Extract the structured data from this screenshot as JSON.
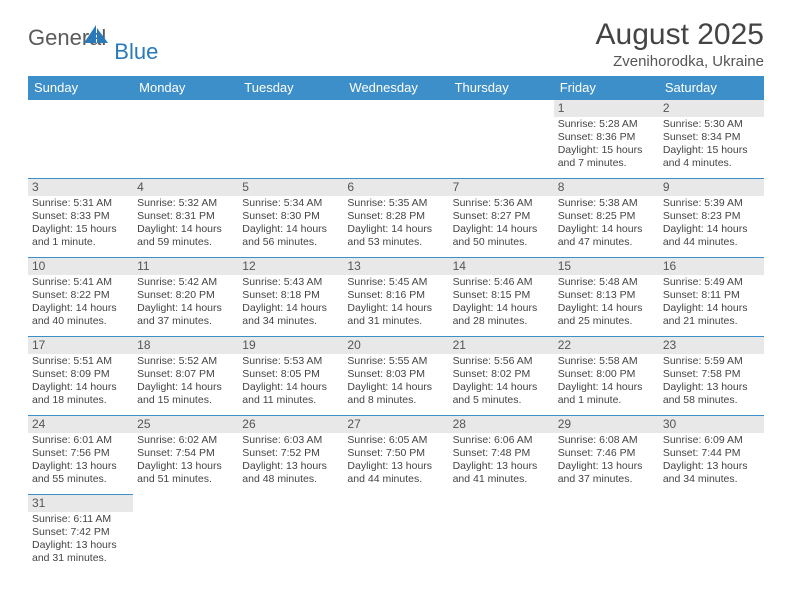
{
  "brand": {
    "part1": "General",
    "part2": "Blue"
  },
  "title": "August 2025",
  "location": "Zvenihorodka, Ukraine",
  "colors": {
    "header_bg": "#3d8fc9",
    "header_fg": "#ffffff",
    "daynum_bg": "#e8e8e8",
    "border": "#3d8fc9",
    "text": "#444444"
  },
  "weekdays": [
    "Sunday",
    "Monday",
    "Tuesday",
    "Wednesday",
    "Thursday",
    "Friday",
    "Saturday"
  ],
  "weeks": [
    [
      null,
      null,
      null,
      null,
      null,
      {
        "n": "1",
        "sr": "5:28 AM",
        "ss": "8:36 PM",
        "dl": "15 hours and 7 minutes."
      },
      {
        "n": "2",
        "sr": "5:30 AM",
        "ss": "8:34 PM",
        "dl": "15 hours and 4 minutes."
      }
    ],
    [
      {
        "n": "3",
        "sr": "5:31 AM",
        "ss": "8:33 PM",
        "dl": "15 hours and 1 minute."
      },
      {
        "n": "4",
        "sr": "5:32 AM",
        "ss": "8:31 PM",
        "dl": "14 hours and 59 minutes."
      },
      {
        "n": "5",
        "sr": "5:34 AM",
        "ss": "8:30 PM",
        "dl": "14 hours and 56 minutes."
      },
      {
        "n": "6",
        "sr": "5:35 AM",
        "ss": "8:28 PM",
        "dl": "14 hours and 53 minutes."
      },
      {
        "n": "7",
        "sr": "5:36 AM",
        "ss": "8:27 PM",
        "dl": "14 hours and 50 minutes."
      },
      {
        "n": "8",
        "sr": "5:38 AM",
        "ss": "8:25 PM",
        "dl": "14 hours and 47 minutes."
      },
      {
        "n": "9",
        "sr": "5:39 AM",
        "ss": "8:23 PM",
        "dl": "14 hours and 44 minutes."
      }
    ],
    [
      {
        "n": "10",
        "sr": "5:41 AM",
        "ss": "8:22 PM",
        "dl": "14 hours and 40 minutes."
      },
      {
        "n": "11",
        "sr": "5:42 AM",
        "ss": "8:20 PM",
        "dl": "14 hours and 37 minutes."
      },
      {
        "n": "12",
        "sr": "5:43 AM",
        "ss": "8:18 PM",
        "dl": "14 hours and 34 minutes."
      },
      {
        "n": "13",
        "sr": "5:45 AM",
        "ss": "8:16 PM",
        "dl": "14 hours and 31 minutes."
      },
      {
        "n": "14",
        "sr": "5:46 AM",
        "ss": "8:15 PM",
        "dl": "14 hours and 28 minutes."
      },
      {
        "n": "15",
        "sr": "5:48 AM",
        "ss": "8:13 PM",
        "dl": "14 hours and 25 minutes."
      },
      {
        "n": "16",
        "sr": "5:49 AM",
        "ss": "8:11 PM",
        "dl": "14 hours and 21 minutes."
      }
    ],
    [
      {
        "n": "17",
        "sr": "5:51 AM",
        "ss": "8:09 PM",
        "dl": "14 hours and 18 minutes."
      },
      {
        "n": "18",
        "sr": "5:52 AM",
        "ss": "8:07 PM",
        "dl": "14 hours and 15 minutes."
      },
      {
        "n": "19",
        "sr": "5:53 AM",
        "ss": "8:05 PM",
        "dl": "14 hours and 11 minutes."
      },
      {
        "n": "20",
        "sr": "5:55 AM",
        "ss": "8:03 PM",
        "dl": "14 hours and 8 minutes."
      },
      {
        "n": "21",
        "sr": "5:56 AM",
        "ss": "8:02 PM",
        "dl": "14 hours and 5 minutes."
      },
      {
        "n": "22",
        "sr": "5:58 AM",
        "ss": "8:00 PM",
        "dl": "14 hours and 1 minute."
      },
      {
        "n": "23",
        "sr": "5:59 AM",
        "ss": "7:58 PM",
        "dl": "13 hours and 58 minutes."
      }
    ],
    [
      {
        "n": "24",
        "sr": "6:01 AM",
        "ss": "7:56 PM",
        "dl": "13 hours and 55 minutes."
      },
      {
        "n": "25",
        "sr": "6:02 AM",
        "ss": "7:54 PM",
        "dl": "13 hours and 51 minutes."
      },
      {
        "n": "26",
        "sr": "6:03 AM",
        "ss": "7:52 PM",
        "dl": "13 hours and 48 minutes."
      },
      {
        "n": "27",
        "sr": "6:05 AM",
        "ss": "7:50 PM",
        "dl": "13 hours and 44 minutes."
      },
      {
        "n": "28",
        "sr": "6:06 AM",
        "ss": "7:48 PM",
        "dl": "13 hours and 41 minutes."
      },
      {
        "n": "29",
        "sr": "6:08 AM",
        "ss": "7:46 PM",
        "dl": "13 hours and 37 minutes."
      },
      {
        "n": "30",
        "sr": "6:09 AM",
        "ss": "7:44 PM",
        "dl": "13 hours and 34 minutes."
      }
    ],
    [
      {
        "n": "31",
        "sr": "6:11 AM",
        "ss": "7:42 PM",
        "dl": "13 hours and 31 minutes."
      },
      null,
      null,
      null,
      null,
      null,
      null
    ]
  ],
  "labels": {
    "sunrise": "Sunrise:",
    "sunset": "Sunset:",
    "daylight": "Daylight:"
  }
}
